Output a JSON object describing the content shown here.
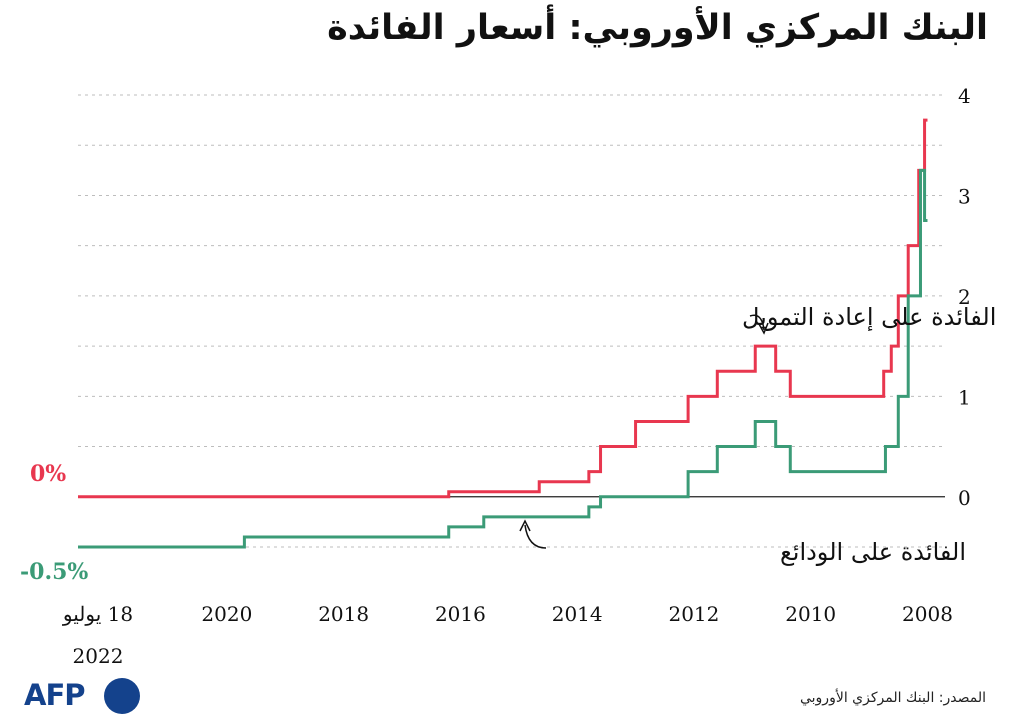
{
  "title": "البنك المركزي الأوروبي: أسعار الفائدة",
  "source": "المصدر: البنك المركزي الأوروبي",
  "logo": "AFP",
  "colors": {
    "refi": "#e8374f",
    "deposit": "#3b9b77",
    "grid": "#bdbdbd",
    "text": "#111111"
  },
  "chart_data": {
    "type": "line",
    "x_direction": "reversed",
    "xlim": [
      2007.7,
      2022.55
    ],
    "ylim": [
      -0.5,
      4
    ],
    "yticks": [
      "0",
      "1",
      "2",
      "3",
      "4"
    ],
    "xticks": [
      "2008",
      "2010",
      "2012",
      "2014",
      "2016",
      "2018",
      "2020",
      "18 يوليو",
      "2022"
    ],
    "grid": true,
    "left_labels": {
      "refi": "0%",
      "deposit": "-0.5%"
    },
    "series": [
      {
        "name": "الفائدة على إعادة التمويل",
        "step": true,
        "points": [
          [
            2008.0,
            3.75
          ],
          [
            2008.05,
            3.25
          ],
          [
            2008.15,
            2.5
          ],
          [
            2008.33,
            2.0
          ],
          [
            2008.5,
            1.5
          ],
          [
            2008.62,
            1.25
          ],
          [
            2008.75,
            1.0
          ],
          [
            2010.1,
            1.0
          ],
          [
            2010.35,
            1.25
          ],
          [
            2010.6,
            1.5
          ],
          [
            2010.95,
            1.25
          ],
          [
            2011.6,
            1.0
          ],
          [
            2012.1,
            0.75
          ],
          [
            2013.0,
            0.5
          ],
          [
            2013.6,
            0.25
          ],
          [
            2013.8,
            0.15
          ],
          [
            2014.65,
            0.05
          ],
          [
            2016.2,
            0.0
          ],
          [
            2022.55,
            0.0
          ]
        ]
      },
      {
        "name": "الفائدة على الودائع",
        "step": true,
        "points": [
          [
            2008.0,
            2.75
          ],
          [
            2008.05,
            3.25
          ],
          [
            2008.12,
            2.0
          ],
          [
            2008.33,
            1.0
          ],
          [
            2008.5,
            0.5
          ],
          [
            2008.72,
            0.25
          ],
          [
            2010.1,
            0.25
          ],
          [
            2010.35,
            0.5
          ],
          [
            2010.6,
            0.75
          ],
          [
            2010.95,
            0.5
          ],
          [
            2011.6,
            0.25
          ],
          [
            2012.1,
            0.0
          ],
          [
            2013.6,
            -0.1
          ],
          [
            2013.8,
            -0.2
          ],
          [
            2015.6,
            -0.3
          ],
          [
            2016.2,
            -0.4
          ],
          [
            2016.5,
            -0.4
          ],
          [
            2019.7,
            -0.5
          ],
          [
            2022.55,
            -0.5
          ]
        ]
      }
    ],
    "annotations": [
      {
        "series": 0,
        "text": "الفائدة على إعادة التمويل"
      },
      {
        "series": 1,
        "text": "الفائدة على الودائع"
      }
    ]
  }
}
